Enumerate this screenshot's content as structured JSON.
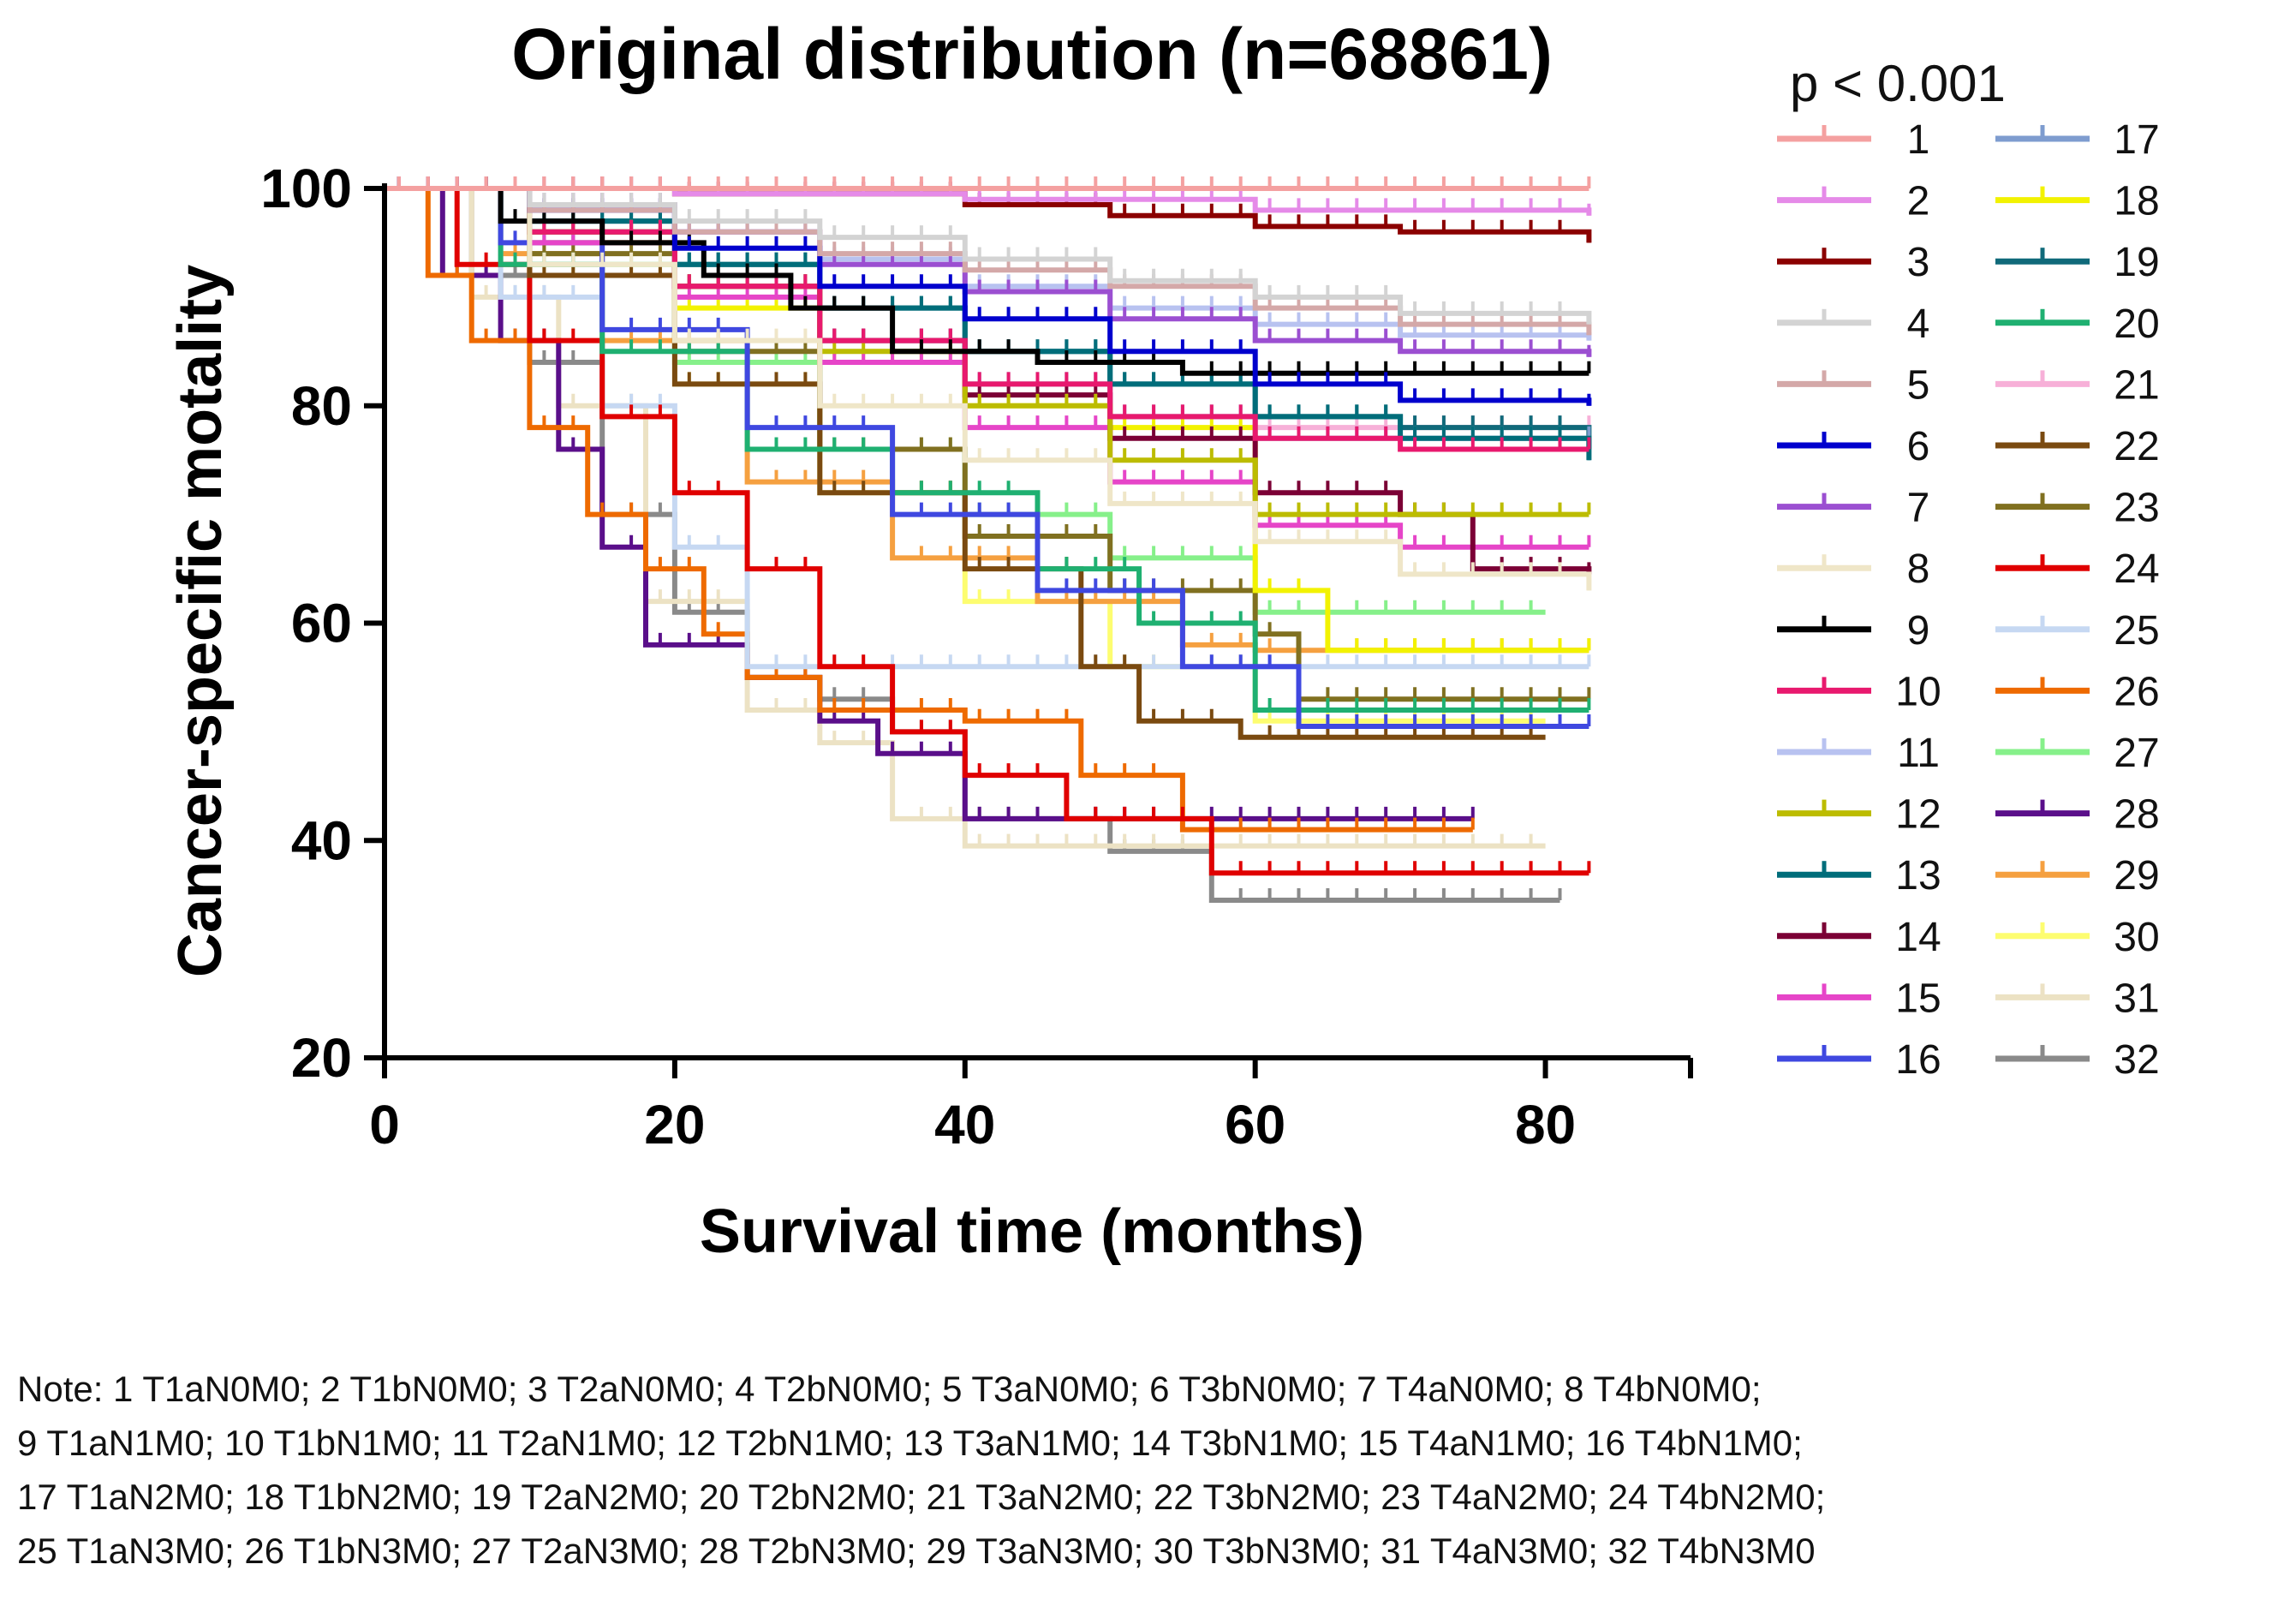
{
  "chart_data": {
    "type": "line",
    "title": "Original distribution (n=68861)",
    "xlabel": "Survival time (months)",
    "ylabel": "Cancer-specific motality",
    "xlim": [
      0,
      90
    ],
    "ylim": [
      20,
      100
    ],
    "xticks": [
      0,
      20,
      40,
      60,
      80
    ],
    "yticks": [
      20,
      40,
      60,
      80,
      100
    ],
    "legend_title": "p < 0.001",
    "legend_position": "right",
    "series": [
      {
        "name": "1",
        "color": "#f4a0a0",
        "x": [
          0,
          83
        ],
        "y": [
          100,
          100
        ]
      },
      {
        "name": "2",
        "color": "#e58ae8",
        "x": [
          0,
          20,
          40,
          60,
          83
        ],
        "y": [
          100,
          99.5,
          99,
          98,
          97.5
        ]
      },
      {
        "name": "3",
        "color": "#8b0000",
        "x": [
          0,
          20,
          40,
          50,
          60,
          70,
          83
        ],
        "y": [
          100,
          99.5,
          98.5,
          97.5,
          96.5,
          96,
          95
        ]
      },
      {
        "name": "4",
        "color": "#d3d3d3",
        "x": [
          0,
          10,
          20,
          30,
          40,
          50,
          60,
          70,
          83
        ],
        "y": [
          100,
          98.5,
          97,
          95.5,
          93.5,
          91.5,
          90,
          88.5,
          87.5
        ]
      },
      {
        "name": "5",
        "color": "#d4a8a8",
        "x": [
          0,
          10,
          20,
          30,
          40,
          50,
          60,
          70,
          83
        ],
        "y": [
          100,
          98,
          96,
          94,
          92.5,
          91,
          89,
          87.5,
          86.5
        ]
      },
      {
        "name": "6",
        "color": "#0000cd",
        "x": [
          0,
          10,
          20,
          30,
          40,
          50,
          60,
          70,
          83
        ],
        "y": [
          100,
          98,
          94.5,
          91,
          88,
          85,
          82,
          80.5,
          80
        ]
      },
      {
        "name": "7",
        "color": "#9b4fd1",
        "x": [
          0,
          10,
          20,
          30,
          40,
          50,
          60,
          70,
          83
        ],
        "y": [
          100,
          98.5,
          96,
          93,
          90.5,
          88,
          86,
          85,
          84.5
        ]
      },
      {
        "name": "8",
        "color": "#efe6c8",
        "x": [
          0,
          10,
          20,
          30,
          40,
          50,
          60,
          70,
          83
        ],
        "y": [
          100,
          93,
          86,
          80,
          75,
          71,
          67.5,
          64.5,
          63
        ]
      },
      {
        "name": "9",
        "color": "#000000",
        "x": [
          0,
          8,
          15,
          22,
          28,
          35,
          45,
          55,
          63,
          83
        ],
        "y": [
          100,
          97,
          95,
          92,
          89,
          85,
          84,
          83,
          83,
          83
        ]
      },
      {
        "name": "10",
        "color": "#e8196e",
        "x": [
          0,
          10,
          20,
          30,
          40,
          50,
          60,
          70,
          83
        ],
        "y": [
          100,
          96,
          91,
          86,
          82,
          79,
          77,
          76,
          76
        ]
      },
      {
        "name": "11",
        "color": "#b8c2f0",
        "x": [
          0,
          10,
          20,
          30,
          40,
          50,
          60,
          70,
          83
        ],
        "y": [
          100,
          98,
          96,
          93.5,
          91,
          89,
          87.5,
          86.5,
          86
        ]
      },
      {
        "name": "12",
        "color": "#bcbc00",
        "x": [
          0,
          10,
          20,
          30,
          40,
          50,
          60,
          70,
          83
        ],
        "y": [
          100,
          96,
          91,
          85,
          80,
          75,
          70,
          70,
          70
        ]
      },
      {
        "name": "13",
        "color": "#006d7a",
        "x": [
          0,
          10,
          20,
          30,
          40,
          50,
          60,
          70,
          83
        ],
        "y": [
          100,
          97,
          93,
          89,
          85,
          82,
          79,
          77,
          75
        ]
      },
      {
        "name": "14",
        "color": "#7b0035",
        "x": [
          0,
          10,
          20,
          30,
          40,
          50,
          60,
          70,
          75,
          83
        ],
        "y": [
          100,
          96,
          91,
          86,
          81,
          77,
          72,
          70,
          65,
          64.5
        ]
      },
      {
        "name": "15",
        "color": "#e645c8",
        "x": [
          0,
          10,
          20,
          30,
          40,
          50,
          60,
          70,
          83
        ],
        "y": [
          100,
          95,
          90,
          84,
          78,
          73,
          69,
          67,
          67
        ]
      },
      {
        "name": "16",
        "color": "#3f48e0",
        "x": [
          0,
          8,
          15,
          25,
          35,
          45,
          55,
          63,
          83
        ],
        "y": [
          100,
          95,
          87,
          78,
          70,
          63,
          56,
          50.5,
          50.5
        ]
      },
      {
        "name": "17",
        "color": "#7e9ccf",
        "x": [
          0,
          10,
          20,
          30,
          40,
          50,
          60,
          83
        ],
        "y": [
          100,
          96,
          91,
          86,
          82,
          79,
          77,
          77
        ]
      },
      {
        "name": "18",
        "color": "#f2f200",
        "x": [
          0,
          10,
          20,
          30,
          40,
          50,
          60,
          65,
          83
        ],
        "y": [
          100,
          95,
          89,
          84,
          80,
          78,
          63,
          57.5,
          57.5
        ]
      },
      {
        "name": "19",
        "color": "#106a7a",
        "x": [
          0,
          10,
          20,
          30,
          40,
          50,
          60,
          70,
          83
        ],
        "y": [
          100,
          97,
          93,
          89,
          85,
          82,
          79,
          78,
          76
        ]
      },
      {
        "name": "20",
        "color": "#1fb071",
        "x": [
          0,
          8,
          15,
          25,
          35,
          45,
          52,
          60,
          83
        ],
        "y": [
          100,
          93,
          85,
          76,
          72,
          65,
          60,
          52,
          52
        ]
      },
      {
        "name": "21",
        "color": "#f7b0d8",
        "x": [
          0,
          10,
          20,
          30,
          40,
          50,
          60,
          83
        ],
        "y": [
          100,
          96,
          91,
          86,
          82,
          79,
          78,
          78
        ]
      },
      {
        "name": "22",
        "color": "#7a4a10",
        "x": [
          0,
          10,
          20,
          30,
          40,
          48,
          52,
          59,
          80
        ],
        "y": [
          100,
          92,
          82,
          72,
          65,
          56,
          51,
          49.5,
          49.5
        ]
      },
      {
        "name": "23",
        "color": "#807020",
        "x": [
          0,
          10,
          20,
          30,
          40,
          50,
          60,
          63,
          83
        ],
        "y": [
          100,
          94,
          85,
          76,
          68,
          63,
          59,
          53,
          53
        ]
      },
      {
        "name": "24",
        "color": "#e00000",
        "x": [
          0,
          5,
          10,
          15,
          20,
          25,
          30,
          35,
          40,
          47,
          57,
          83
        ],
        "y": [
          100,
          93,
          86,
          79,
          72,
          65,
          56,
          50,
          46,
          42,
          37,
          37
        ]
      },
      {
        "name": "25",
        "color": "#c6d8f2",
        "x": [
          0,
          8,
          15,
          20,
          25,
          30,
          83
        ],
        "y": [
          100,
          90,
          80,
          67,
          56,
          56,
          56
        ]
      },
      {
        "name": "26",
        "color": "#ee6a00",
        "x": [
          0,
          3,
          6,
          10,
          14,
          18,
          22,
          25,
          30,
          40,
          48,
          55,
          75
        ],
        "y": [
          100,
          92,
          86,
          78,
          70,
          65,
          59,
          55,
          52,
          51,
          46,
          41,
          41
        ]
      },
      {
        "name": "27",
        "color": "#86f08a",
        "x": [
          0,
          10,
          20,
          30,
          40,
          50,
          60,
          80
        ],
        "y": [
          100,
          93,
          84,
          76,
          70,
          66,
          61,
          61
        ]
      },
      {
        "name": "28",
        "color": "#5a0f8a",
        "x": [
          0,
          4,
          8,
          12,
          15,
          18,
          22,
          25,
          30,
          34,
          40,
          75
        ],
        "y": [
          100,
          92,
          86,
          76,
          67,
          58,
          58,
          55,
          51,
          48,
          42,
          42
        ]
      },
      {
        "name": "29",
        "color": "#f5a040",
        "x": [
          0,
          8,
          15,
          25,
          35,
          45,
          55,
          60,
          83
        ],
        "y": [
          100,
          94,
          86,
          73,
          66,
          62,
          58,
          57.5,
          57.5
        ]
      },
      {
        "name": "30",
        "color": "#fdfd70",
        "x": [
          0,
          10,
          20,
          30,
          40,
          50,
          60,
          80
        ],
        "y": [
          100,
          92,
          82,
          72,
          62,
          56,
          51,
          51
        ]
      },
      {
        "name": "31",
        "color": "#ece2c4",
        "x": [
          0,
          6,
          12,
          18,
          25,
          30,
          35,
          40,
          80
        ],
        "y": [
          100,
          90,
          80,
          62,
          52,
          49,
          42,
          39.5,
          39.5
        ]
      },
      {
        "name": "32",
        "color": "#8a8a8a",
        "x": [
          0,
          6,
          10,
          15,
          20,
          25,
          30,
          35,
          40,
          50,
          57,
          81
        ],
        "y": [
          100,
          92,
          84,
          70,
          61,
          55,
          53,
          50,
          42,
          39,
          34.5,
          34.5
        ]
      }
    ]
  },
  "note": {
    "lines": [
      "Note: 1 T1aN0M0; 2 T1bN0M0; 3 T2aN0M0; 4 T2bN0M0; 5 T3aN0M0; 6 T3bN0M0; 7 T4aN0M0; 8 T4bN0M0;",
      "9 T1aN1M0; 10 T1bN1M0; 11 T2aN1M0; 12 T2bN1M0; 13 T3aN1M0; 14 T3bN1M0; 15 T4aN1M0; 16 T4bN1M0;",
      "17 T1aN2M0; 18 T1bN2M0; 19 T2aN2M0; 20 T2bN2M0; 21 T3aN2M0; 22 T3bN2M0; 23 T4aN2M0; 24 T4bN2M0;",
      "25 T1aN3M0; 26 T1bN3M0; 27 T2aN3M0; 28 T2bN3M0; 29 T3aN3M0; 30 T3bN3M0; 31 T4aN3M0; 32 T4bN3M0"
    ]
  }
}
